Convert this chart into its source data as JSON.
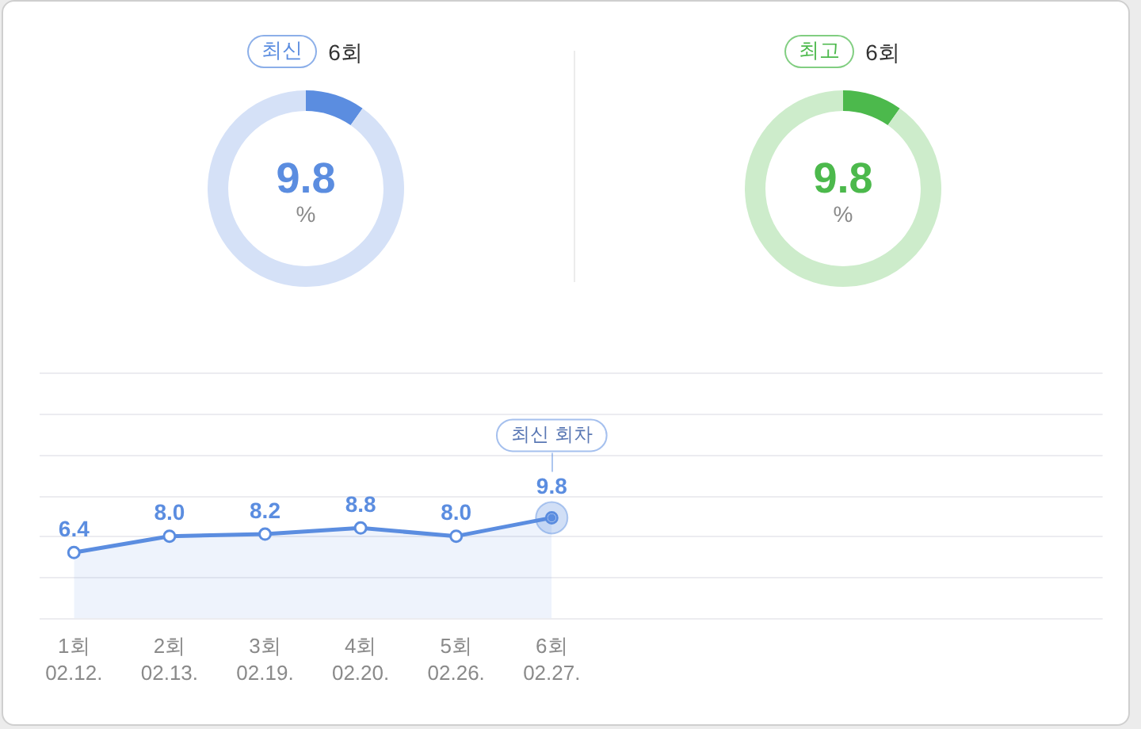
{
  "chart_data": [
    {
      "type": "donut",
      "title": "최신",
      "subtitle": "6회",
      "categories": [
        null,
        null
      ],
      "values": [
        9.8,
        90.2
      ],
      "colors": [
        "#5b8de0",
        "#d5e1f7"
      ],
      "value_labels": [
        "9.8",
        null
      ],
      "annotations": [
        "%"
      ]
    },
    {
      "type": "donut",
      "title": "최고",
      "subtitle": "6회",
      "categories": [
        null,
        null
      ],
      "values": [
        9.8,
        90.2
      ],
      "colors": [
        "#4cb94c",
        "#cdeccb"
      ],
      "value_labels": [
        "9.8",
        null
      ],
      "annotations": [
        "%"
      ]
    },
    {
      "type": "area",
      "categories": [
        "1회\n02.12.",
        "2회\n02.13.",
        "3회\n02.19.",
        "4회\n02.20.",
        "5회\n02.26.",
        "6회\n02.27.",
        null,
        null,
        null,
        null,
        null
      ],
      "values": [
        6.4,
        8.0,
        8.2,
        8.8,
        8.0,
        9.8,
        null,
        null,
        null,
        null,
        null
      ],
      "value_labels": [
        "6.4",
        "8.0",
        "8.2",
        "8.8",
        "8.0",
        "9.8",
        null,
        null,
        null,
        null,
        null
      ],
      "color": "#5b8de0",
      "ylim": [
        0,
        24
      ],
      "yticks": [
        {
          "value": 0,
          "label": null
        },
        {
          "value": 4,
          "label": null
        },
        {
          "value": 8,
          "label": null
        },
        {
          "value": 12,
          "label": null
        },
        {
          "value": 16,
          "label": null
        },
        {
          "value": 20,
          "label": null
        },
        {
          "value": 24,
          "label": null
        }
      ],
      "tick_labels": "x",
      "grid": "y",
      "marker": "circle",
      "annotations": [
        "최신 회차"
      ]
    }
  ]
}
